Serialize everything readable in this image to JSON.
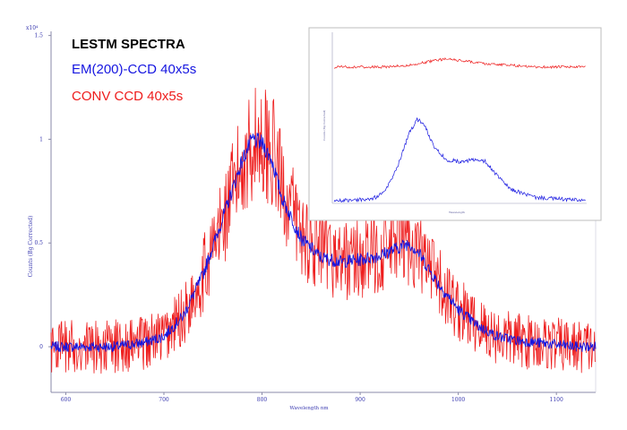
{
  "chart_data": [
    {
      "type": "line",
      "title": "LESTM SPECTRA",
      "xlabel": "Wavelength nm",
      "ylabel": "Counts (Bg Corrected)",
      "y_multiplier": "x10⁴",
      "xlim": [
        585,
        1140
      ],
      "ylim": [
        -0.22,
        1.52
      ],
      "x_ticks": [
        "600",
        "700",
        "800",
        "900",
        "1000",
        "1100"
      ],
      "y_ticks": [
        "0",
        "0.5",
        "1",
        "1.5"
      ],
      "grid": false,
      "legend_position": "top-left",
      "series": [
        {
          "name": "EM(200)-CCD 40x5s",
          "color": "#1515e0",
          "noise_amplitude": 0.025,
          "x": [
            585,
            600,
            650,
            680,
            700,
            720,
            740,
            760,
            780,
            790,
            800,
            810,
            820,
            840,
            860,
            880,
            900,
            920,
            940,
            950,
            960,
            980,
            1000,
            1020,
            1040,
            1060,
            1080,
            1100,
            1120,
            1140
          ],
          "values": [
            0.0,
            0.0,
            0.0,
            0.02,
            0.05,
            0.15,
            0.35,
            0.62,
            0.9,
            1.0,
            0.98,
            0.9,
            0.72,
            0.52,
            0.43,
            0.41,
            0.42,
            0.44,
            0.48,
            0.5,
            0.45,
            0.3,
            0.18,
            0.1,
            0.05,
            0.03,
            0.02,
            0.01,
            0.0,
            0.0
          ]
        },
        {
          "name": "CONV CCD 40x5s",
          "color": "#ee1c1c",
          "noise_amplitude": 0.13,
          "x": [
            585,
            600,
            650,
            680,
            700,
            720,
            740,
            760,
            780,
            790,
            800,
            810,
            820,
            840,
            860,
            880,
            900,
            920,
            940,
            950,
            960,
            980,
            1000,
            1020,
            1040,
            1060,
            1080,
            1100,
            1120,
            1140
          ],
          "values": [
            0.0,
            0.0,
            0.0,
            0.02,
            0.05,
            0.15,
            0.35,
            0.6,
            0.88,
            0.98,
            1.0,
            0.95,
            0.78,
            0.55,
            0.45,
            0.42,
            0.42,
            0.45,
            0.5,
            0.5,
            0.45,
            0.3,
            0.18,
            0.1,
            0.05,
            0.03,
            0.02,
            0.01,
            0.0,
            0.0
          ]
        }
      ]
    },
    {
      "type": "line",
      "title": "",
      "xlabel": "Wavelength",
      "ylabel": "Counts (Bg Corrected)",
      "grid": false,
      "series": [
        {
          "color": "#ee1c1c",
          "noise_amplitude": 0.008,
          "x": [
            0,
            0.2,
            0.3,
            0.4,
            0.45,
            0.5,
            0.6,
            0.7,
            0.8,
            1.0
          ],
          "values": [
            0.82,
            0.82,
            0.83,
            0.86,
            0.87,
            0.86,
            0.84,
            0.83,
            0.82,
            0.82
          ]
        },
        {
          "color": "#1515e0",
          "noise_amplitude": 0.012,
          "x": [
            0,
            0.15,
            0.2,
            0.25,
            0.3,
            0.33,
            0.36,
            0.4,
            0.45,
            0.5,
            0.55,
            0.6,
            0.65,
            0.7,
            0.8,
            0.9,
            1.0
          ],
          "values": [
            0.0,
            0.01,
            0.05,
            0.2,
            0.42,
            0.5,
            0.46,
            0.32,
            0.25,
            0.24,
            0.25,
            0.24,
            0.15,
            0.07,
            0.02,
            0.01,
            0.0
          ]
        }
      ]
    }
  ]
}
